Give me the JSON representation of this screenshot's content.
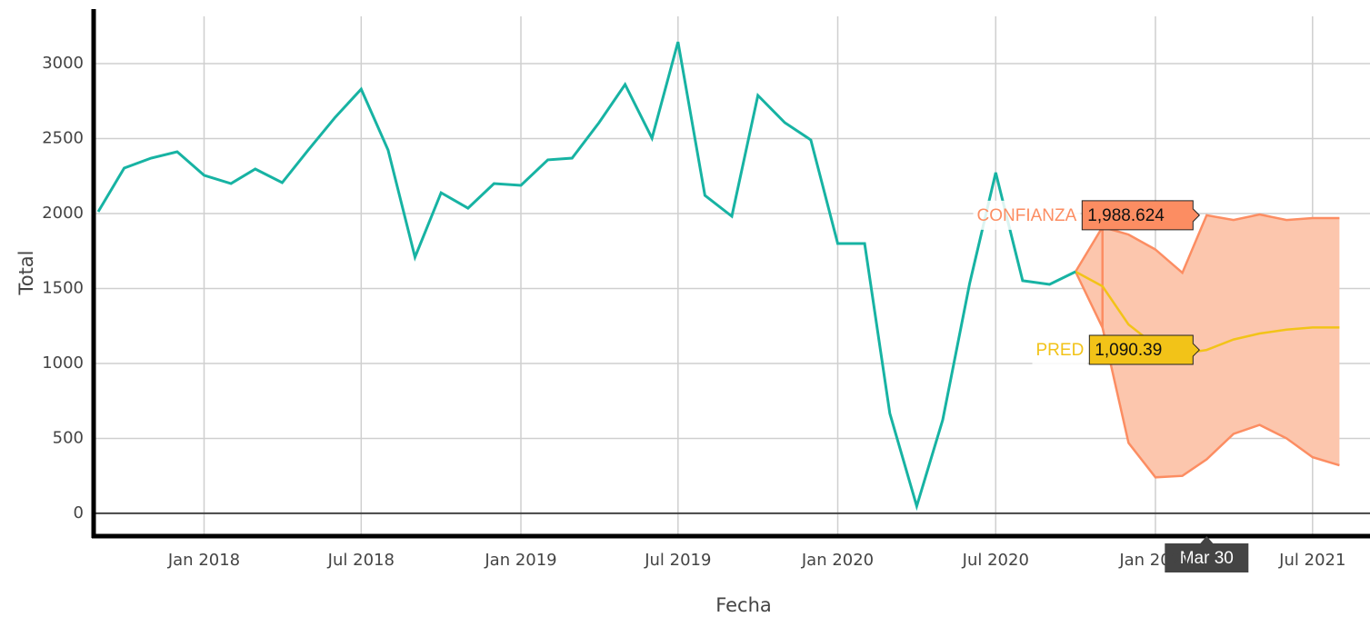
{
  "chart_data": {
    "type": "line",
    "xlabel": "Fecha",
    "ylabel": "Total",
    "x": [
      "2017-09",
      "2017-10",
      "2017-11",
      "2017-12",
      "2018-01",
      "2018-02",
      "2018-03",
      "2018-04",
      "2018-05",
      "2018-06",
      "2018-07",
      "2018-08",
      "2018-09",
      "2018-10",
      "2018-11",
      "2018-12",
      "2019-01",
      "2019-02",
      "2019-03",
      "2019-04",
      "2019-05",
      "2019-06",
      "2019-07",
      "2019-08",
      "2019-09",
      "2019-10",
      "2019-11",
      "2019-12",
      "2020-01",
      "2020-02",
      "2020-03",
      "2020-04",
      "2020-05",
      "2020-06",
      "2020-07",
      "2020-08",
      "2020-09",
      "2020-10"
    ],
    "series": [
      {
        "name": "Total",
        "color": "#17b3a3",
        "values": [
          2012,
          2303,
          2370,
          2412,
          2255,
          2200,
          2297,
          2206,
          2424,
          2642,
          2830,
          2424,
          1709,
          2139,
          2036,
          2200,
          2188,
          2358,
          2370,
          2606,
          2861,
          2503,
          3145,
          2121,
          1982,
          2788,
          2606,
          2491,
          1800,
          1800,
          667,
          48,
          624,
          1533,
          2273,
          1552,
          1527,
          1612
        ]
      }
    ],
    "forecast": {
      "x": [
        "2020-10",
        "2020-11",
        "2020-12",
        "2021-01",
        "2021-02",
        "2021-03",
        "2021-04",
        "2021-05",
        "2021-06",
        "2021-07",
        "2021-08"
      ],
      "pred": {
        "name": "PRED",
        "color": "#f2c318",
        "values": [
          1612,
          1515,
          1260,
          1120,
          1065,
          1090.39,
          1160,
          1200,
          1225,
          1240,
          1240
        ]
      },
      "band": {
        "name": "CONFIANZA",
        "color": "#fc8d62",
        "fill": "#fcc6ad",
        "upper": [
          1612,
          1910,
          1860,
          1760,
          1605,
          1988.624,
          1957,
          1994,
          1957,
          1970,
          1970
        ],
        "lower": [
          1612,
          1240,
          470,
          240,
          250,
          360,
          530,
          590,
          500,
          375,
          320
        ]
      }
    },
    "hover": {
      "x_label": "Mar 30",
      "x": "2021-03",
      "items": [
        {
          "name": "CONFIANZA",
          "value": 1988.624,
          "label": "1,988.624"
        },
        {
          "name": "PRED",
          "value": 1090.39,
          "label": "1,090.39"
        }
      ]
    },
    "xlim": [
      "2017-09",
      "2021-09"
    ],
    "xticks": [
      {
        "value": "2018-01",
        "label": "Jan 2018"
      },
      {
        "value": "2018-07",
        "label": "Jul 2018"
      },
      {
        "value": "2019-01",
        "label": "Jan 2019"
      },
      {
        "value": "2019-07",
        "label": "Jul 2019"
      },
      {
        "value": "2020-01",
        "label": "Jan 2020"
      },
      {
        "value": "2020-07",
        "label": "Jul 2020"
      },
      {
        "value": "2021-01",
        "label": "Jan 2021"
      },
      {
        "value": "2021-07",
        "label": "Jul 2021"
      }
    ],
    "ylim": [
      -152,
      3364
    ],
    "yticks": [
      0,
      500,
      1000,
      1500,
      2000,
      2500,
      3000
    ],
    "grid": true
  }
}
